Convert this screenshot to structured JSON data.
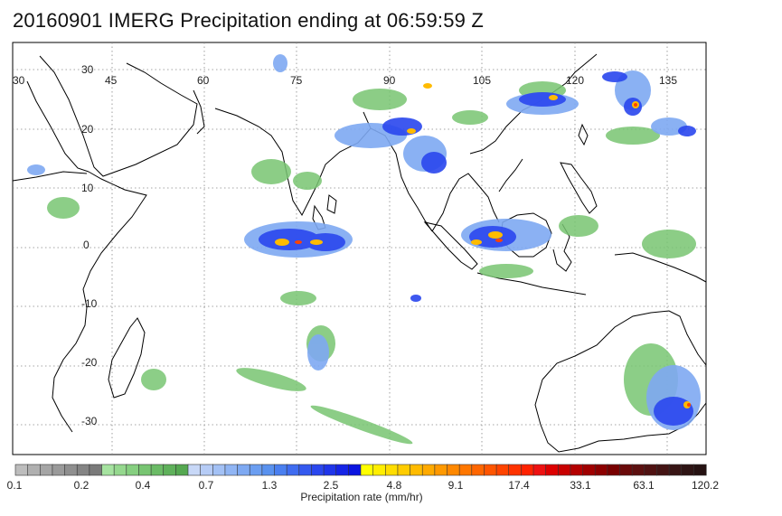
{
  "title": "20160901 IMERG Precipitation ending at 06:59:59 Z",
  "map": {
    "lon_labels": [
      "30",
      "45",
      "60",
      "75",
      "90",
      "105",
      "120",
      "135"
    ],
    "lat_labels": [
      "30",
      "20",
      "10",
      "0",
      "-10",
      "-20",
      "-30"
    ],
    "grid": "dotted"
  },
  "colorbar": {
    "caption": "Precipitation rate (mm/hr)",
    "tick_labels": [
      "0.1",
      "0.2",
      "0.4",
      "0.7",
      "1.3",
      "2.5",
      "4.8",
      "9.1",
      "17.4",
      "33.1",
      "63.1",
      "120.2"
    ],
    "colors": [
      "#bdbdbd",
      "#b0b0b0",
      "#a5a5a5",
      "#9a9a9a",
      "#8f8f8f",
      "#848484",
      "#7a7a7a",
      "#a6e3a0",
      "#95d88e",
      "#86cf80",
      "#78c572",
      "#6bbb66",
      "#5fb15b",
      "#55a851",
      "#c8d8f7",
      "#b6ccf6",
      "#a3c1f5",
      "#90b5f4",
      "#7ea9f2",
      "#6b9ef1",
      "#5992ef",
      "#4a7ff0",
      "#3f6cf0",
      "#3459ef",
      "#2a47ee",
      "#1f35ea",
      "#1524e6",
      "#0a14e0",
      "#ffff00",
      "#ffee00",
      "#ffdd00",
      "#ffcc00",
      "#ffbb00",
      "#ffaa00",
      "#ff9900",
      "#ff8800",
      "#ff7700",
      "#ff6600",
      "#ff5500",
      "#ff4400",
      "#ff3300",
      "#ff2200",
      "#ee1111",
      "#dd0000",
      "#c80000",
      "#b40000",
      "#a00000",
      "#8c0000",
      "#780000",
      "#6a0a0a",
      "#5c1010",
      "#501212",
      "#441414",
      "#381515",
      "#2e1414",
      "#261212"
    ]
  }
}
